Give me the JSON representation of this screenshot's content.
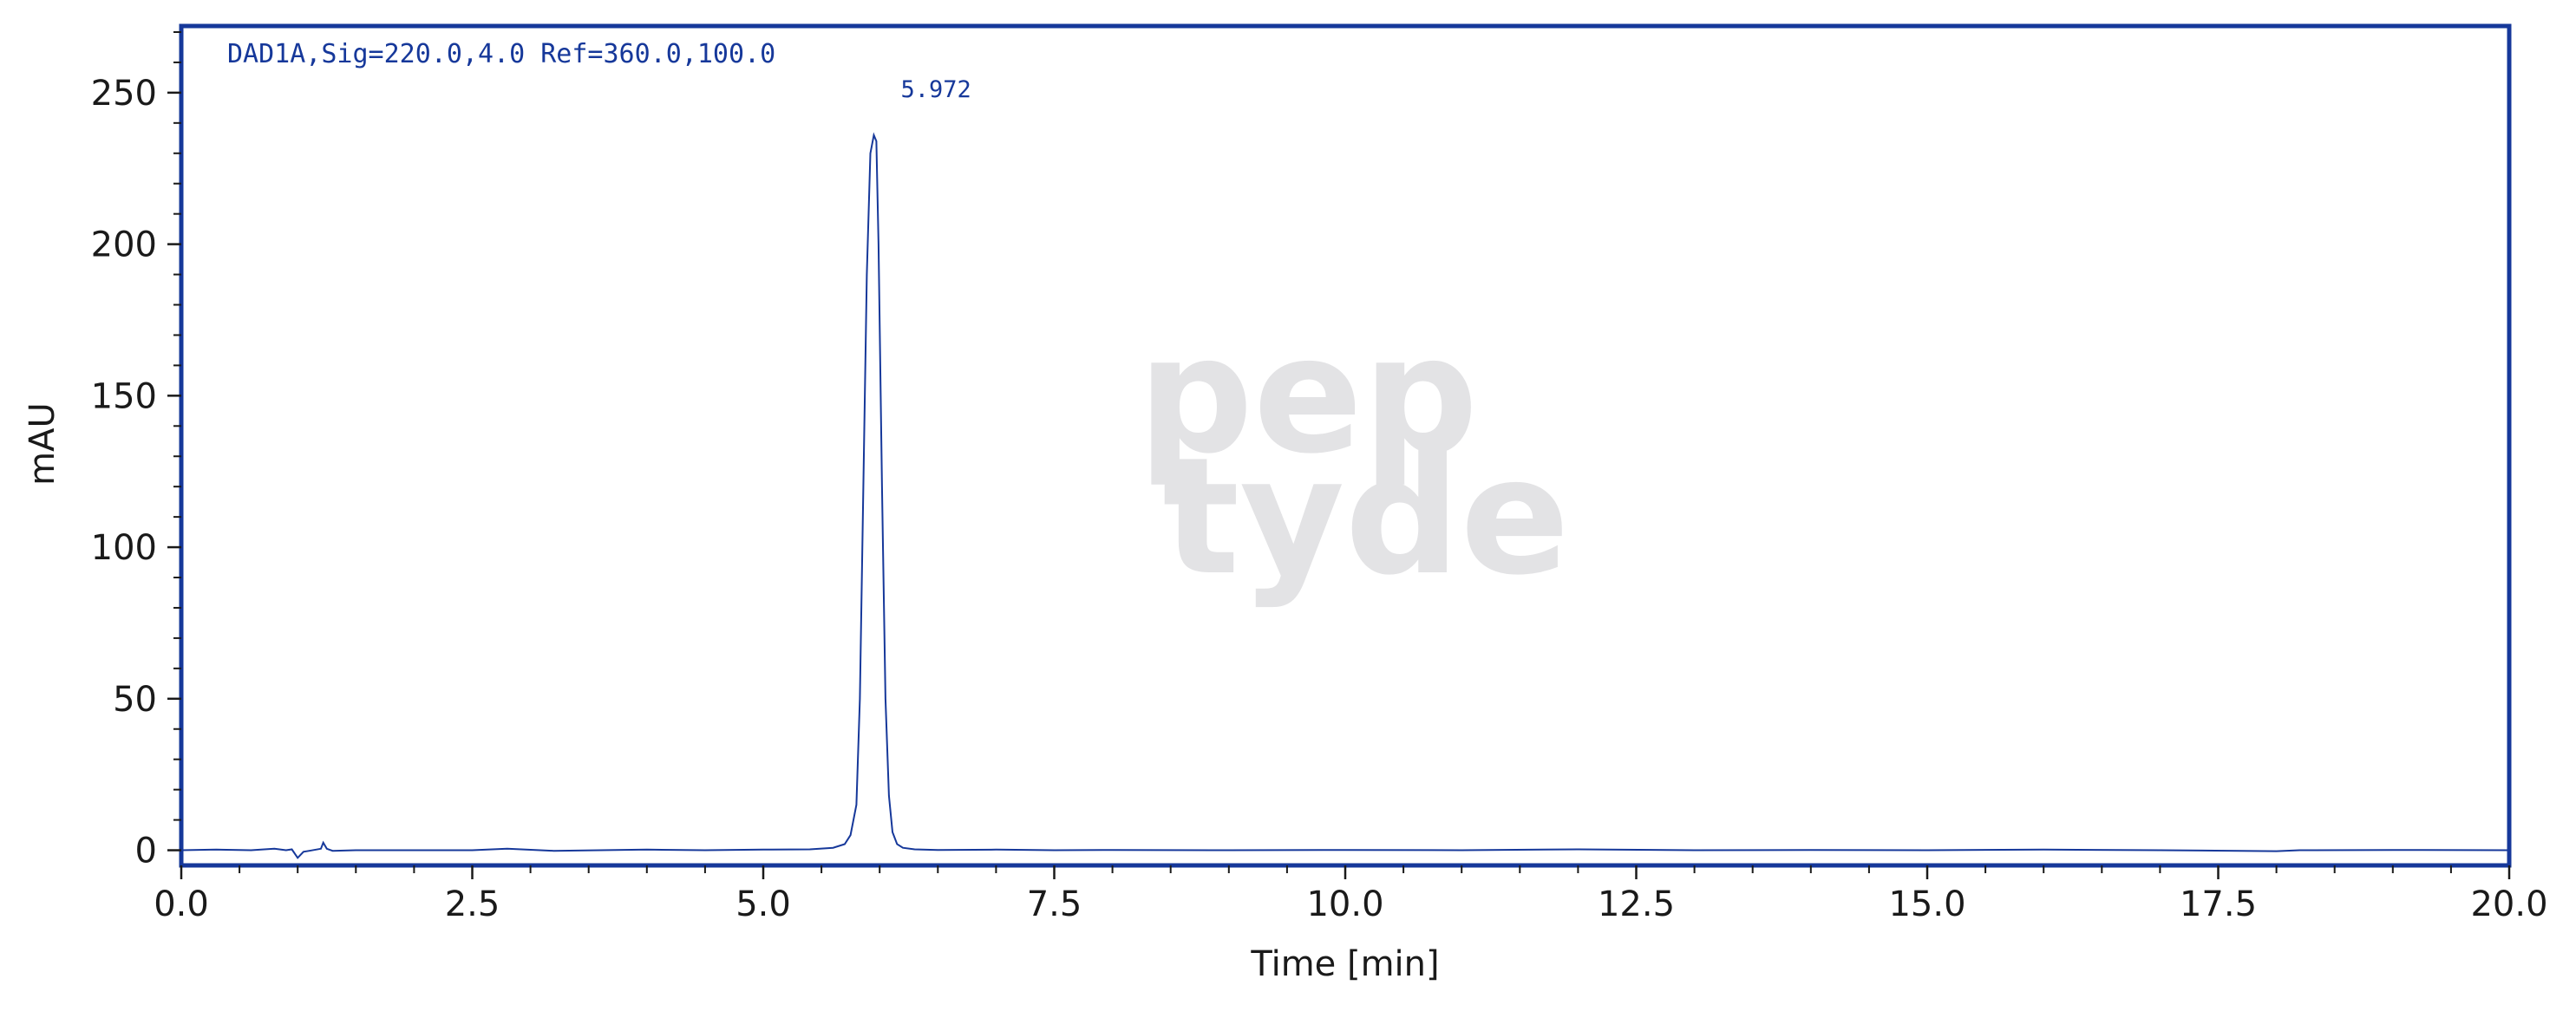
{
  "chart_data": {
    "type": "line",
    "title": "",
    "xlabel": "Time [min]",
    "ylabel": "mAU",
    "xlim": [
      0,
      20
    ],
    "ylim": [
      -5,
      272
    ],
    "x_major_ticks": [
      0,
      2.5,
      5,
      7.5,
      10,
      12.5,
      15,
      17.5,
      20
    ],
    "x_tick_labels": [
      "0.0",
      "2.5",
      "5.0",
      "7.5",
      "10.0",
      "12.5",
      "15.0",
      "17.5",
      "20.0"
    ],
    "y_major_ticks": [
      0,
      50,
      100,
      150,
      200,
      250
    ],
    "y_tick_labels": [
      "0",
      "50",
      "100",
      "150",
      "200",
      "250"
    ],
    "grid": false,
    "signal_label": "DAD1A,Sig=220.0,4.0 Ref=360.0,100.0",
    "peaks": [
      {
        "label": "5.972",
        "x": 5.972,
        "y": 236
      }
    ],
    "watermark": [
      "pep",
      "tyde"
    ],
    "colors": {
      "frame": "#16389a",
      "line": "#16389a",
      "text": "#1a1a1a",
      "watermark": "#e3e3e5"
    },
    "series": [
      {
        "x": [
          0,
          0.3,
          0.6,
          0.8,
          0.9,
          0.95,
          1.0,
          1.05,
          1.1,
          1.2,
          1.22,
          1.25,
          1.3,
          1.5,
          2.0,
          2.5,
          2.8,
          3.2,
          4.0,
          4.5,
          5.0,
          5.4,
          5.6,
          5.7,
          5.75,
          5.8,
          5.83,
          5.86,
          5.89,
          5.92,
          5.95,
          5.972,
          5.99,
          6.02,
          6.05,
          6.08,
          6.11,
          6.15,
          6.2,
          6.3,
          6.5,
          7.0,
          7.5,
          8.0,
          9.0,
          10.0,
          11.0,
          12.0,
          13.0,
          14.0,
          15.0,
          16.0,
          17.0,
          18.0,
          18.2,
          19.0,
          20.0
        ],
        "y": [
          0,
          0.2,
          0,
          0.5,
          0,
          0.3,
          -2.5,
          -0.5,
          -0.2,
          0.5,
          2.5,
          0.5,
          -0.2,
          0,
          0,
          0,
          0.5,
          -0.2,
          0.2,
          0,
          0.2,
          0.3,
          0.8,
          2,
          5,
          15,
          50,
          120,
          190,
          230,
          236,
          234,
          200,
          120,
          50,
          18,
          6,
          2,
          0.8,
          0.3,
          0.1,
          0.2,
          0,
          0.1,
          0,
          0.1,
          0,
          0.3,
          0,
          0.1,
          0,
          0.2,
          0,
          -0.3,
          0,
          0.1,
          0
        ]
      }
    ]
  }
}
